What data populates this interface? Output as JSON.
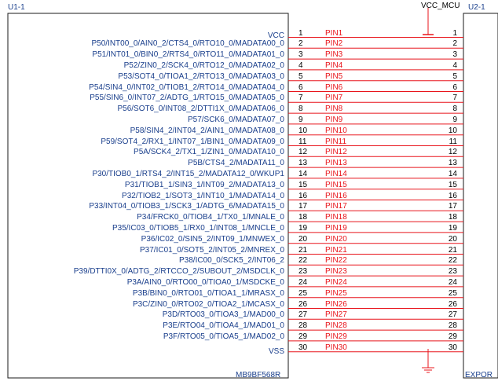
{
  "u1": {
    "ref": "U1-1",
    "part": "MB9BF568R",
    "vcc_label": "VCC",
    "vss_label": "VSS",
    "pins": [
      "P50/INT00_0/AIN0_2/CTS4_0/RTO10_0/MADATA00_0",
      "P51/INT01_0/BIN0_2/RTS4_0/RTO11_0/MADATA01_0",
      "P52/ZIN0_2/SCK4_0/RTO12_0/MADATA02_0",
      "P53/SOT4_0/TIOA1_2/RTO13_0/MADATA03_0",
      "P54/SIN4_0/INT02_0/TIOB1_2/RTO14_0/MADATA04_0",
      "P55/SIN6_0/INT07_2/ADTG_1/RTO15_0/MADATA05_0",
      "P56/SOT6_0/INT08_2/DTTI1X_0/MADATA06_0",
      "P57/SCK6_0/MADATA07_0",
      "P58/SIN4_2/INT04_2/AIN1_0/MADATA08_0",
      "P59/SOT4_2/RX1_1/INT07_1/BIN1_0/MADATA09_0",
      "P5A/SCK4_2/TX1_1/ZIN1_0/MADATA10_0",
      "P5B/CTS4_2/MADATA11_0",
      "P30/TIOB0_1/RTS4_2/INT15_2/MADATA12_0/WKUP1",
      "P31/TIOB1_1/SIN3_1/INT09_2/MADATA13_0",
      "P32/TIOB2_1/SOT3_1/INT10_1/MADATA14_0",
      "P33/INT04_0/TIOB3_1/SCK3_1/ADTG_6/MADATA15_0",
      "P34/FRCK0_0/TIOB4_1/TX0_1/MNALE_0",
      "P35/IC03_0/TIOB5_1/RX0_1/INT08_1/MNCLE_0",
      "P36/IC02_0/SIN5_2/INT09_1/MNWEX_0",
      "P37/IC01_0/SOT5_2/INT05_2/MNREX_0",
      "P38/IC00_0/SCK5_2/INT06_2",
      "P39/DTTI0X_0/ADTG_2/RTCCO_2/SUBOUT_2/MSDCLK_0",
      "P3A/AIN0_0/RTO00_0/TIOA0_1/MSDCKE_0",
      "P3B/BIN0_0/RTO01_0/TIOA1_1/MRASX_0",
      "P3C/ZIN0_0/RTO02_0/TIOA2_1/MCASX_0",
      "P3D/RTO03_0/TIOA3_1/MAD00_0",
      "P3E/RTO04_0/TIOA4_1/MAD01_0",
      "P3F/RTO05_0/TIOA5_1/MAD02_0"
    ]
  },
  "u2": {
    "ref": "U2-1",
    "part": "EXPOR"
  },
  "power": {
    "vcc_net": "VCC_MCU"
  },
  "connector": {
    "pin_numbers": [
      "1",
      "2",
      "3",
      "4",
      "5",
      "6",
      "7",
      "8",
      "9",
      "10",
      "11",
      "12",
      "13",
      "14",
      "15",
      "16",
      "17",
      "18",
      "19",
      "20",
      "21",
      "22",
      "23",
      "24",
      "25",
      "26",
      "27",
      "28",
      "29",
      "30"
    ],
    "nets": [
      "PIN1",
      "PIN2",
      "PIN3",
      "PIN4",
      "PIN5",
      "PIN6",
      "PIN7",
      "PIN8",
      "PIN9",
      "PIN10",
      "PIN11",
      "PIN12",
      "PIN13",
      "PIN14",
      "PIN15",
      "PIN16",
      "PIN17",
      "PIN18",
      "PIN19",
      "PIN20",
      "PIN21",
      "PIN22",
      "PIN23",
      "PIN24",
      "PIN25",
      "PIN26",
      "PIN27",
      "PIN28",
      "PIN29",
      "PIN30"
    ]
  },
  "colors": {
    "wire": "#e8141b",
    "component_outline": "#1a1a1a",
    "label_text": "#1a3f8c",
    "pin_number_text": "#000000"
  }
}
